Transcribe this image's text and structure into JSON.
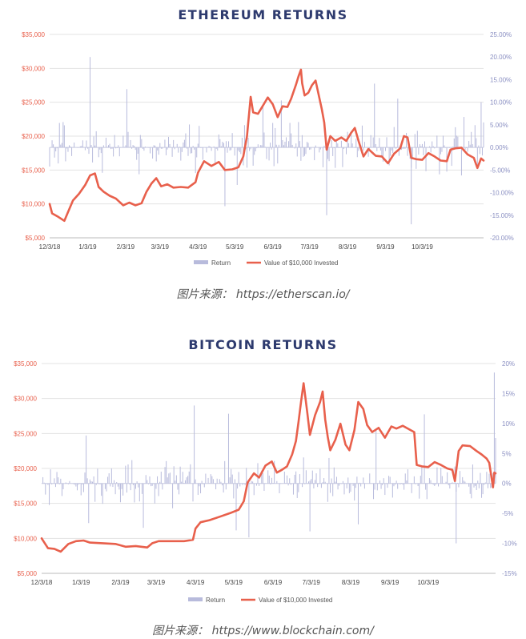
{
  "colors": {
    "title": "#2d3a6e",
    "value_line": "#e8604c",
    "return_bars": "#b8bbdc",
    "left_axis": "#e8604c",
    "right_axis": "#8a8fc2"
  },
  "captions": {
    "eth_source": "图片来源： https://etherscan.io/",
    "btc_source": "图片来源： https://www.blockchain.com/"
  },
  "chart_data": [
    {
      "type": "line",
      "title": "ETHEREUM RETURNS",
      "x_ticks": [
        "12/3/18",
        "1/3/19",
        "2/3/19",
        "3/3/19",
        "4/3/19",
        "5/3/19",
        "6/3/19",
        "7/3/19",
        "8/3/19",
        "9/3/19",
        "10/3/19"
      ],
      "x_range": [
        "2018-12-03",
        "2019-11-22"
      ],
      "left_axis": {
        "ticks": [
          "$5,000",
          "$10,000",
          "$15,000",
          "$20,000",
          "$25,000",
          "$30,000",
          "$35,000"
        ],
        "ylim": [
          5000,
          35000
        ]
      },
      "right_axis": {
        "ticks": [
          "25.00%",
          "20.00%",
          "15.00%",
          "10.00%",
          "5.00%",
          "0.00%",
          "-5.00%",
          "-10.00%",
          "-15.00%",
          "-20.00%"
        ],
        "ylim": [
          -20,
          25
        ]
      },
      "legend": [
        "Return",
        "Value of $10,000 Invested"
      ],
      "series": [
        {
          "name": "Value of $10,000 Invested",
          "kind": "line",
          "points": [
            [
              "2018-12-03",
              10000
            ],
            [
              "2018-12-05",
              8600
            ],
            [
              "2018-12-10",
              8100
            ],
            [
              "2018-12-15",
              7500
            ],
            [
              "2018-12-18",
              8800
            ],
            [
              "2018-12-22",
              10500
            ],
            [
              "2018-12-27",
              11500
            ],
            [
              "2019-01-01",
              12800
            ],
            [
              "2019-01-05",
              14200
            ],
            [
              "2019-01-09",
              14500
            ],
            [
              "2019-01-12",
              12500
            ],
            [
              "2019-01-16",
              11800
            ],
            [
              "2019-01-21",
              11200
            ],
            [
              "2019-01-26",
              10800
            ],
            [
              "2019-02-01",
              9800
            ],
            [
              "2019-02-06",
              10200
            ],
            [
              "2019-02-11",
              9800
            ],
            [
              "2019-02-16",
              10100
            ],
            [
              "2019-02-20",
              11800
            ],
            [
              "2019-02-24",
              13000
            ],
            [
              "2019-02-28",
              13800
            ],
            [
              "2019-03-04",
              12600
            ],
            [
              "2019-03-09",
              12900
            ],
            [
              "2019-03-14",
              12400
            ],
            [
              "2019-03-20",
              12500
            ],
            [
              "2019-03-26",
              12400
            ],
            [
              "2019-04-01",
              13200
            ],
            [
              "2019-04-03",
              14600
            ],
            [
              "2019-04-08",
              16300
            ],
            [
              "2019-04-14",
              15600
            ],
            [
              "2019-04-20",
              16200
            ],
            [
              "2019-04-25",
              15000
            ],
            [
              "2019-05-01",
              15100
            ],
            [
              "2019-05-06",
              15400
            ],
            [
              "2019-05-10",
              17000
            ],
            [
              "2019-05-13",
              20000
            ],
            [
              "2019-05-16",
              25800
            ],
            [
              "2019-05-18",
              23500
            ],
            [
              "2019-05-22",
              23300
            ],
            [
              "2019-05-26",
              24500
            ],
            [
              "2019-05-30",
              25700
            ],
            [
              "2019-06-03",
              24700
            ],
            [
              "2019-06-07",
              22800
            ],
            [
              "2019-06-11",
              24400
            ],
            [
              "2019-06-15",
              24300
            ],
            [
              "2019-06-18",
              25500
            ],
            [
              "2019-06-22",
              27600
            ],
            [
              "2019-06-24",
              28800
            ],
            [
              "2019-06-26",
              29800
            ],
            [
              "2019-06-27",
              27800
            ],
            [
              "2019-06-29",
              26000
            ],
            [
              "2019-07-02",
              26400
            ],
            [
              "2019-07-05",
              27500
            ],
            [
              "2019-07-08",
              28200
            ],
            [
              "2019-07-10",
              26500
            ],
            [
              "2019-07-13",
              24000
            ],
            [
              "2019-07-15",
              22000
            ],
            [
              "2019-07-17",
              18000
            ],
            [
              "2019-07-20",
              20000
            ],
            [
              "2019-07-24",
              19300
            ],
            [
              "2019-07-29",
              19800
            ],
            [
              "2019-08-02",
              19300
            ],
            [
              "2019-08-06",
              20500
            ],
            [
              "2019-08-09",
              21200
            ],
            [
              "2019-08-12",
              19300
            ],
            [
              "2019-08-16",
              17000
            ],
            [
              "2019-08-20",
              18100
            ],
            [
              "2019-08-26",
              17100
            ],
            [
              "2019-08-31",
              17000
            ],
            [
              "2019-09-05",
              16000
            ],
            [
              "2019-09-10",
              17400
            ],
            [
              "2019-09-15",
              18200
            ],
            [
              "2019-09-18",
              20000
            ],
            [
              "2019-09-21",
              19800
            ],
            [
              "2019-09-24",
              16800
            ],
            [
              "2019-09-28",
              16600
            ],
            [
              "2019-10-03",
              16500
            ],
            [
              "2019-10-08",
              17500
            ],
            [
              "2019-10-13",
              17000
            ],
            [
              "2019-10-18",
              16400
            ],
            [
              "2019-10-23",
              16300
            ],
            [
              "2019-10-26",
              18000
            ],
            [
              "2019-10-30",
              18200
            ],
            [
              "2019-11-04",
              18300
            ],
            [
              "2019-11-09",
              17300
            ],
            [
              "2019-11-14",
              16800
            ],
            [
              "2019-11-17",
              15300
            ],
            [
              "2019-11-20",
              16700
            ],
            [
              "2019-11-22",
              16400
            ]
          ]
        },
        {
          "name": "Return",
          "kind": "bars",
          "note_values": "daily % returns, -15% to +20%"
        }
      ]
    },
    {
      "type": "line",
      "title": "BITCOIN RETURNS",
      "x_ticks": [
        "12/3/18",
        "1/3/19",
        "2/3/19",
        "3/3/19",
        "4/3/19",
        "5/3/19",
        "6/3/19",
        "7/3/19",
        "8/3/19",
        "9/3/19",
        "10/3/19"
      ],
      "x_range": [
        "2018-12-03",
        "2019-11-25"
      ],
      "left_axis": {
        "ticks": [
          "$5,000",
          "$10,000",
          "$15,000",
          "$20,000",
          "$25,000",
          "$30,000",
          "$35,000"
        ],
        "ylim": [
          5000,
          35000
        ]
      },
      "right_axis": {
        "ticks": [
          "20%",
          "15%",
          "10%",
          "5%",
          "0%",
          "-5%",
          "-10%",
          "-15%"
        ],
        "ylim": [
          -15,
          20
        ]
      },
      "legend": [
        "Return",
        "Value of $10,000 Invested"
      ],
      "series": [
        {
          "name": "Value of $10,000 Invested",
          "kind": "line",
          "points": [
            [
              "2018-12-03",
              10000
            ],
            [
              "2018-12-08",
              8600
            ],
            [
              "2018-12-13",
              8500
            ],
            [
              "2018-12-18",
              8100
            ],
            [
              "2018-12-24",
              9200
            ],
            [
              "2018-12-30",
              9600
            ],
            [
              "2019-01-05",
              9700
            ],
            [
              "2019-01-10",
              9400
            ],
            [
              "2019-01-20",
              9300
            ],
            [
              "2019-01-30",
              9200
            ],
            [
              "2019-02-07",
              8800
            ],
            [
              "2019-02-15",
              8900
            ],
            [
              "2019-02-24",
              8700
            ],
            [
              "2019-02-28",
              9300
            ],
            [
              "2019-03-05",
              9600
            ],
            [
              "2019-03-15",
              9600
            ],
            [
              "2019-03-25",
              9600
            ],
            [
              "2019-04-01",
              9800
            ],
            [
              "2019-04-03",
              11400
            ],
            [
              "2019-04-07",
              12300
            ],
            [
              "2019-04-14",
              12600
            ],
            [
              "2019-04-22",
              13100
            ],
            [
              "2019-04-30",
              13600
            ],
            [
              "2019-05-07",
              14100
            ],
            [
              "2019-05-11",
              15300
            ],
            [
              "2019-05-14",
              18000
            ],
            [
              "2019-05-19",
              19300
            ],
            [
              "2019-05-23",
              18700
            ],
            [
              "2019-05-28",
              20400
            ],
            [
              "2019-06-02",
              21000
            ],
            [
              "2019-06-06",
              19400
            ],
            [
              "2019-06-10",
              19800
            ],
            [
              "2019-06-14",
              20300
            ],
            [
              "2019-06-18",
              22000
            ],
            [
              "2019-06-21",
              23900
            ],
            [
              "2019-06-23",
              26600
            ],
            [
              "2019-06-25",
              29500
            ],
            [
              "2019-06-27",
              32200
            ],
            [
              "2019-06-30",
              27900
            ],
            [
              "2019-07-02",
              24800
            ],
            [
              "2019-07-06",
              27600
            ],
            [
              "2019-07-10",
              29500
            ],
            [
              "2019-07-12",
              31000
            ],
            [
              "2019-07-14",
              27000
            ],
            [
              "2019-07-16",
              24500
            ],
            [
              "2019-07-18",
              22600
            ],
            [
              "2019-07-22",
              24100
            ],
            [
              "2019-07-26",
              26400
            ],
            [
              "2019-07-30",
              23400
            ],
            [
              "2019-08-02",
              22600
            ],
            [
              "2019-08-06",
              25500
            ],
            [
              "2019-08-09",
              29500
            ],
            [
              "2019-08-13",
              28500
            ],
            [
              "2019-08-16",
              26200
            ],
            [
              "2019-08-20",
              25200
            ],
            [
              "2019-08-25",
              25800
            ],
            [
              "2019-08-30",
              24400
            ],
            [
              "2019-09-04",
              26000
            ],
            [
              "2019-09-08",
              25700
            ],
            [
              "2019-09-13",
              26100
            ],
            [
              "2019-09-18",
              25600
            ],
            [
              "2019-09-22",
              25200
            ],
            [
              "2019-09-24",
              20500
            ],
            [
              "2019-09-28",
              20300
            ],
            [
              "2019-10-03",
              20200
            ],
            [
              "2019-10-08",
              20900
            ],
            [
              "2019-10-13",
              20500
            ],
            [
              "2019-10-18",
              20000
            ],
            [
              "2019-10-22",
              19800
            ],
            [
              "2019-10-24",
              18200
            ],
            [
              "2019-10-27",
              22500
            ],
            [
              "2019-10-30",
              23300
            ],
            [
              "2019-11-05",
              23200
            ],
            [
              "2019-11-10",
              22500
            ],
            [
              "2019-11-14",
              22000
            ],
            [
              "2019-11-18",
              21400
            ],
            [
              "2019-11-20",
              20800
            ],
            [
              "2019-11-23",
              17300
            ],
            [
              "2019-11-24",
              19400
            ],
            [
              "2019-11-25",
              19300
            ]
          ]
        },
        {
          "name": "Return",
          "kind": "bars",
          "note_values": "daily % returns, -10% to +18%"
        }
      ]
    }
  ]
}
